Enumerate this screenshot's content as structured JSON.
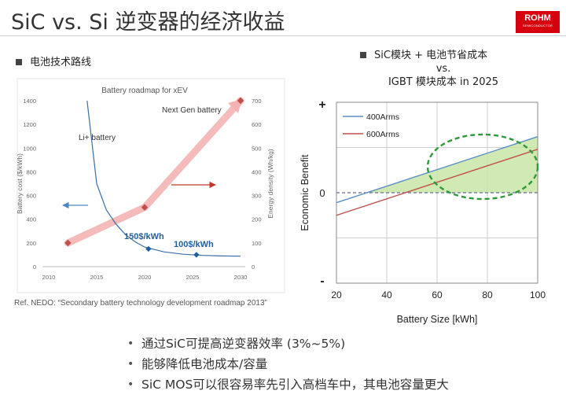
{
  "page": {
    "title": "SiC vs. Si 逆变器的经济收益",
    "logo": {
      "name": "ROHM",
      "sub": "SEMICONDUCTOR",
      "color": "#d7000f"
    },
    "left_heading": "电池技术路线",
    "right_heading": [
      "SiC模块 + 电池节省成本",
      "vs.",
      "IGBT 模块成本 in 2025"
    ],
    "reference": "Ref. NEDO: “Secondary battery technology development roadmap 2013”",
    "bullets": [
      "通过SiC可提高逆变器效率 (3%~5%)",
      "能够降低电池成本/容量",
      "SiC MOS可以很容易率先引入高档车中，其电池容量更大"
    ]
  },
  "chart_data": [
    {
      "type": "line",
      "title": "Battery roadmap for xEV",
      "xlabel": "",
      "ylabel": "Battery cost ($/kWh)",
      "y2label": "Energy density (Wh/kg)",
      "xlim": [
        2010,
        2030
      ],
      "ylim": [
        0,
        1400
      ],
      "y2lim": [
        0,
        700
      ],
      "xticks": [
        2010,
        2015,
        2020,
        2025,
        2030
      ],
      "yticks": [
        0,
        200,
        400,
        600,
        800,
        1000,
        1200,
        1400
      ],
      "y2ticks": [
        0,
        100,
        200,
        300,
        400,
        500,
        600,
        700
      ],
      "series": [
        {
          "name": "Li+ battery",
          "axis": "left",
          "color": "#3a6ea5",
          "x": [
            2014,
            2015,
            2016,
            2017,
            2018,
            2019,
            2020,
            2022,
            2024,
            2026,
            2028,
            2030
          ],
          "y": [
            1400,
            700,
            480,
            360,
            270,
            210,
            165,
            125,
            105,
            95,
            90,
            88
          ]
        },
        {
          "name": "Next Gen battery",
          "axis": "right",
          "color": "#f4b2b2",
          "x": [
            2012,
            2020,
            2030
          ],
          "y": [
            100,
            250,
            700
          ]
        }
      ],
      "markers": [
        {
          "axis": "left",
          "x": 2020.4,
          "y": 150,
          "label": "150$/kWh",
          "color": "#1f5f9f"
        },
        {
          "axis": "left",
          "x": 2025.4,
          "y": 100,
          "label": "100$/kWh",
          "color": "#1f5f9f"
        },
        {
          "axis": "right",
          "x": 2012,
          "y": 100,
          "color": "#c0504d"
        },
        {
          "axis": "right",
          "x": 2020,
          "y": 250,
          "color": "#c0504d"
        },
        {
          "axis": "right",
          "x": 2030,
          "y": 700,
          "color": "#c0504d"
        }
      ],
      "annotations": [
        "Li+ battery",
        "Next Gen battery",
        "150$/kWh",
        "100$/kWh"
      ],
      "grid": false
    },
    {
      "type": "line",
      "title": "",
      "xlabel": "Battery Size [kWh]",
      "ylabel": "Economic  Benefit",
      "xlim": [
        20,
        100
      ],
      "ylim": [
        -1,
        1
      ],
      "xticks": [
        20,
        40,
        60,
        80,
        100
      ],
      "ytick_labels": {
        "top": "+",
        "zero": "0",
        "bottom": "-"
      },
      "legend": "top-left",
      "grid": true,
      "series": [
        {
          "name": "400Arms",
          "color": "#5b8fc7",
          "x": [
            20,
            100
          ],
          "y": [
            -0.11,
            0.62
          ]
        },
        {
          "name": "600Arms",
          "color": "#c0504d",
          "x": [
            20,
            100
          ],
          "y": [
            -0.25,
            0.48
          ]
        }
      ],
      "highlight": {
        "shade_color": "#c6e3a0",
        "ellipse_color": "#2e9a3a",
        "x_range": [
          54,
          100
        ]
      }
    }
  ]
}
